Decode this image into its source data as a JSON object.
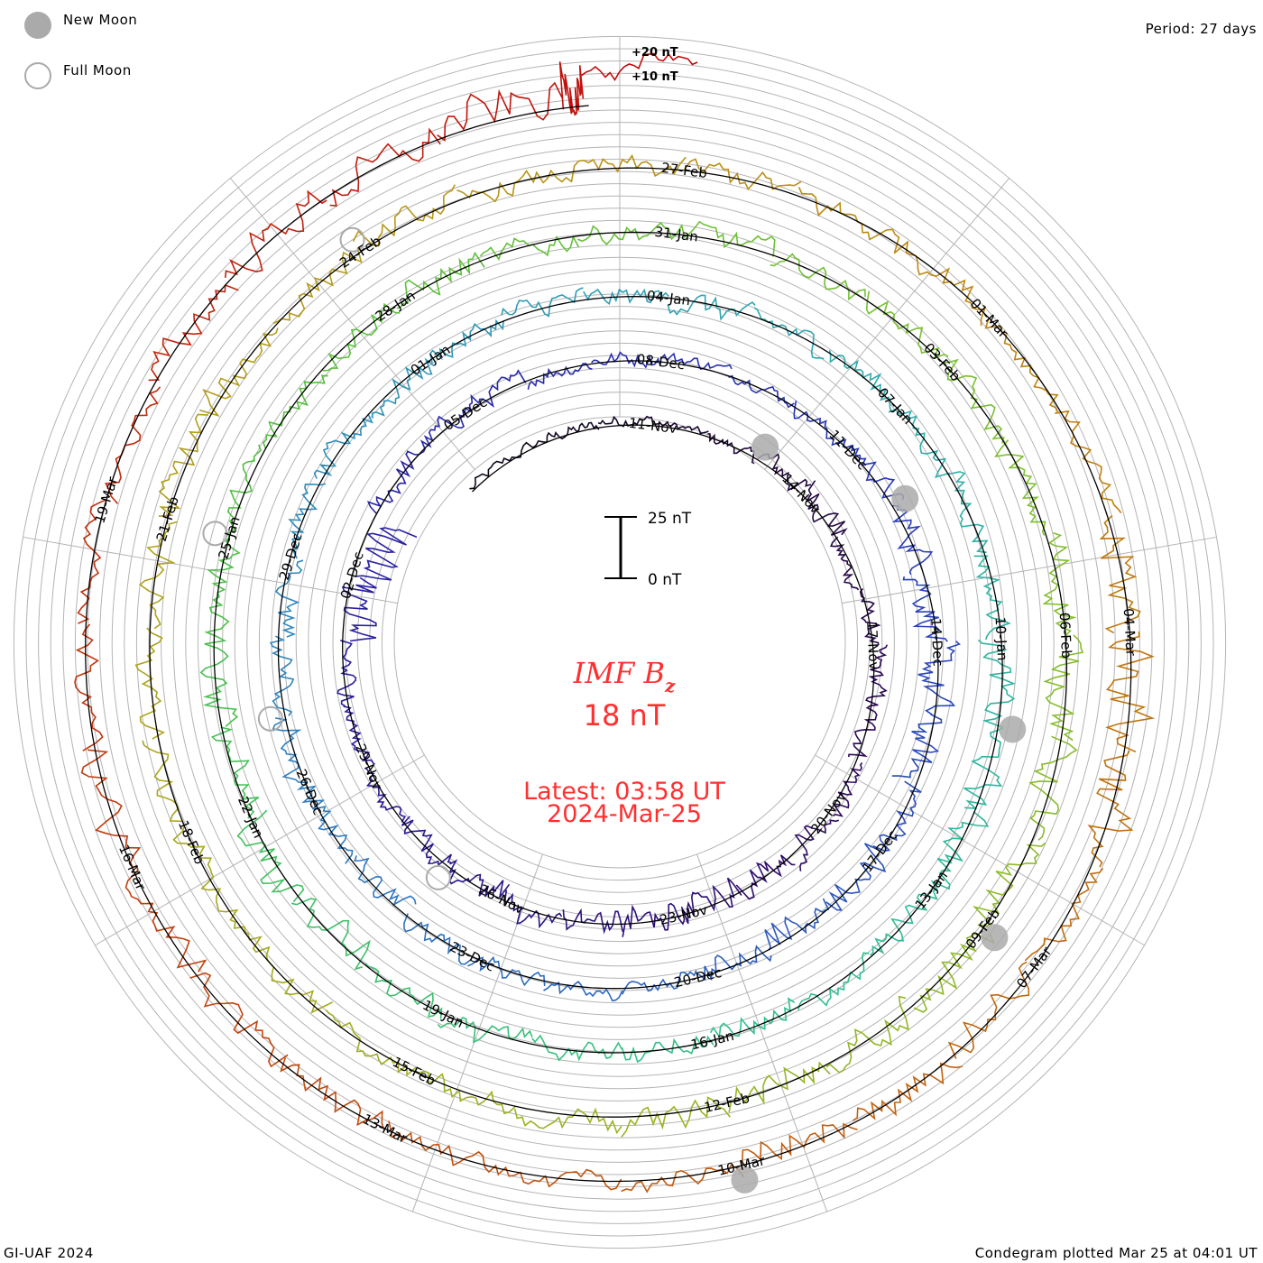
{
  "legend": {
    "new_moon": "New Moon",
    "full_moon": "Full Moon"
  },
  "period_label": "Period: 27 days",
  "footer_left": "GI-UAF 2024",
  "footer_right": "Condegram plotted Mar 25 at 04:01 UT",
  "scale": {
    "top_label": "25 nT",
    "bottom_label": "0 nT",
    "ref20": "+20 nT",
    "ref10": "+10 nT"
  },
  "center": {
    "title_main": "IMF B",
    "title_sub": "z",
    "value": "18 nT",
    "latest": "Latest: 03:58 UT",
    "date": "2024-Mar-25"
  },
  "colors": {
    "text_red": "#ff3030",
    "grid": "#b4b4b4",
    "moon": "#aaaaaa",
    "stops": [
      [
        -4,
        "#100818"
      ],
      [
        8,
        "#300a60"
      ],
      [
        18,
        "#2a1a9a"
      ],
      [
        30,
        "#2838b8"
      ],
      [
        45,
        "#3080c0"
      ],
      [
        55,
        "#30a8b0"
      ],
      [
        65,
        "#30c090"
      ],
      [
        75,
        "#50c040"
      ],
      [
        85,
        "#80c030"
      ],
      [
        95,
        "#a0b020"
      ],
      [
        105,
        "#b89818"
      ],
      [
        112,
        "#c08010"
      ],
      [
        122,
        "#c05010"
      ],
      [
        135,
        "#c00c0c"
      ]
    ]
  },
  "chart_data": {
    "type": "line",
    "title": "IMF Bz",
    "subtitle": "Condegram, period 27 days",
    "units": "nT",
    "scale_reference_nT": 25,
    "days_start": -3,
    "day_reference": "11-Nov = day 0",
    "daily_mean_nT": [
      1,
      1,
      2,
      1,
      0,
      2,
      3,
      -2,
      0,
      1,
      0,
      2,
      1,
      -1,
      0,
      1,
      -1,
      0,
      -1,
      0,
      1,
      0,
      -1,
      -8,
      -12,
      0,
      1,
      1,
      0,
      1,
      2,
      1,
      0,
      2,
      1,
      -1,
      -2,
      -3,
      1,
      0,
      -2,
      -1,
      0,
      1,
      0,
      1,
      -1,
      0,
      1,
      0,
      -1,
      1,
      0,
      -1,
      0,
      1,
      0,
      -1,
      0,
      1,
      0,
      1,
      -1,
      -2,
      -1,
      0,
      1,
      0,
      -1,
      0,
      1,
      0,
      -1,
      -2,
      1,
      0,
      -1,
      0,
      1,
      0,
      1,
      0,
      -1,
      0,
      1,
      0,
      1,
      0,
      -1,
      1,
      0,
      -1,
      -2,
      1,
      0,
      -1,
      0,
      1,
      0,
      1,
      -1,
      0,
      1,
      0,
      -1,
      1,
      0,
      0,
      1,
      -1,
      0,
      1,
      0,
      1,
      0,
      1,
      -1,
      1,
      0,
      0,
      -1,
      1,
      0,
      1,
      0,
      -1,
      0,
      1,
      -1,
      1,
      0,
      1,
      -1,
      0,
      1,
      0,
      4,
      8,
      15
    ],
    "daily_amplitude_nT": [
      3,
      3,
      3,
      2,
      3,
      6,
      7,
      4,
      4,
      5,
      5,
      5,
      6,
      7,
      8,
      8,
      6,
      6,
      7,
      6,
      4,
      4,
      5,
      10,
      14,
      6,
      5,
      5,
      4,
      4,
      3,
      3,
      4,
      5,
      7,
      8,
      10,
      8,
      7,
      9,
      8,
      6,
      4,
      4,
      5,
      5,
      6,
      6,
      7,
      5,
      6,
      5,
      6,
      6,
      5,
      6,
      5,
      6,
      5,
      6,
      5,
      6,
      6,
      8,
      8,
      8,
      6,
      5,
      6,
      5,
      6,
      6,
      6,
      9,
      9,
      9,
      8,
      6,
      5,
      6,
      6,
      7,
      6,
      5,
      6,
      5,
      5,
      6,
      6,
      9,
      9,
      9,
      9,
      7,
      8,
      8,
      8,
      6,
      5,
      5,
      6,
      6,
      6,
      6,
      8,
      8,
      8,
      6,
      6,
      5,
      6,
      6,
      7,
      6,
      5,
      5,
      13,
      13,
      13,
      6,
      7,
      7,
      7,
      5,
      5,
      5,
      8,
      8,
      8,
      8,
      6,
      5,
      5,
      8,
      8,
      8,
      10,
      14,
      6
    ],
    "date_labels": [
      {
        "text": "11-Nov",
        "day": 0
      },
      {
        "text": "14-Nov",
        "day": 3
      },
      {
        "text": "17-Nov",
        "day": 6
      },
      {
        "text": "20-Nov",
        "day": 9
      },
      {
        "text": "23-Nov",
        "day": 12
      },
      {
        "text": "26-Nov",
        "day": 15
      },
      {
        "text": "29-Nov",
        "day": 18
      },
      {
        "text": "02-Dec",
        "day": 21
      },
      {
        "text": "05-Dec",
        "day": 24
      },
      {
        "text": "08-Dec",
        "day": 27
      },
      {
        "text": "11-Dec",
        "day": 30
      },
      {
        "text": "14-Dec",
        "day": 33
      },
      {
        "text": "17-Dec",
        "day": 36
      },
      {
        "text": "20-Dec",
        "day": 39
      },
      {
        "text": "23-Dec",
        "day": 42
      },
      {
        "text": "26-Dec",
        "day": 45
      },
      {
        "text": "29-Dec",
        "day": 48
      },
      {
        "text": "01-Jan",
        "day": 51
      },
      {
        "text": "04-Jan",
        "day": 54
      },
      {
        "text": "07-Jan",
        "day": 57
      },
      {
        "text": "10-Jan",
        "day": 60
      },
      {
        "text": "13-Jan",
        "day": 63
      },
      {
        "text": "16-Jan",
        "day": 66
      },
      {
        "text": "19-Jan",
        "day": 69
      },
      {
        "text": "22-Jan",
        "day": 72
      },
      {
        "text": "25-Jan",
        "day": 75
      },
      {
        "text": "28-Jan",
        "day": 78
      },
      {
        "text": "31-Jan",
        "day": 81
      },
      {
        "text": "03-Feb",
        "day": 84
      },
      {
        "text": "06-Feb",
        "day": 87
      },
      {
        "text": "09-Feb",
        "day": 90
      },
      {
        "text": "12-Feb",
        "day": 93
      },
      {
        "text": "15-Feb",
        "day": 96
      },
      {
        "text": "18-Feb",
        "day": 99
      },
      {
        "text": "21-Feb",
        "day": 102
      },
      {
        "text": "24-Feb",
        "day": 105
      },
      {
        "text": "27-Feb",
        "day": 108
      },
      {
        "text": "01-Mar",
        "day": 111
      },
      {
        "text": "04-Mar",
        "day": 114
      },
      {
        "text": "07-Mar",
        "day": 117
      },
      {
        "text": "10-Mar",
        "day": 120
      },
      {
        "text": "13-Mar",
        "day": 123
      },
      {
        "text": "16-Mar",
        "day": 126
      },
      {
        "text": "19-Mar",
        "day": 129
      }
    ],
    "new_moon_days": [
      2,
      31,
      61,
      90,
      120
    ],
    "full_moon_days": [
      16,
      46,
      75,
      105
    ]
  }
}
